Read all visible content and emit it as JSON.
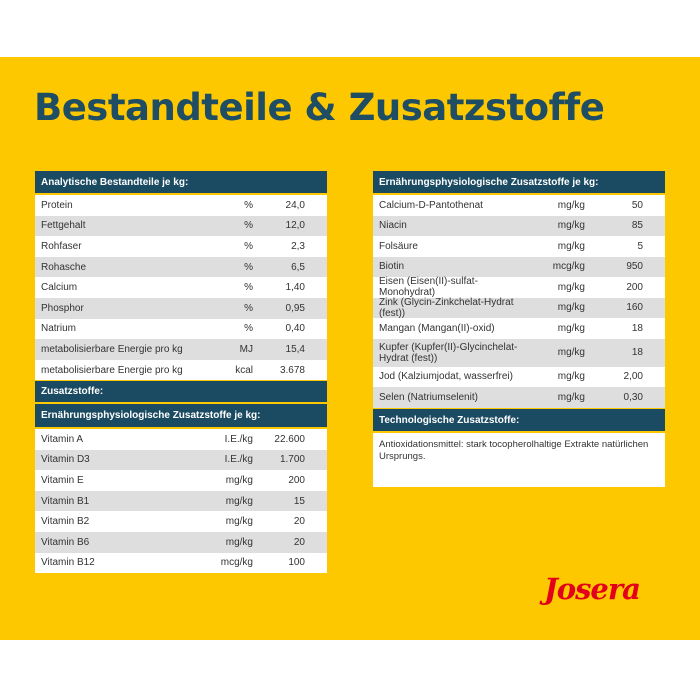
{
  "title": "Bestandteile & Zusatzstoffe",
  "colors": {
    "background": "#fdc800",
    "header": "#1b4b62",
    "title": "#1f4d63",
    "stripe": "#dedede",
    "logo": "#e2001a"
  },
  "analytical": {
    "header": "Analytische Bestandteile je kg:",
    "rows": [
      {
        "name": "Protein",
        "unit": "%",
        "value": "24,0"
      },
      {
        "name": "Fettgehalt",
        "unit": "%",
        "value": "12,0"
      },
      {
        "name": "Rohfaser",
        "unit": "%",
        "value": "2,3"
      },
      {
        "name": "Rohasche",
        "unit": "%",
        "value": "6,5"
      },
      {
        "name": "Calcium",
        "unit": "%",
        "value": "1,40"
      },
      {
        "name": "Phosphor",
        "unit": "%",
        "value": "0,95"
      },
      {
        "name": "Natrium",
        "unit": "%",
        "value": "0,40"
      },
      {
        "name": "metabolisierbare Energie pro kg",
        "unit": "MJ",
        "value": "15,4"
      },
      {
        "name": "metabolisierbare Energie pro kg",
        "unit": "kcal",
        "value": "3.678"
      }
    ]
  },
  "additives": {
    "header": "Zusatzstoffe:",
    "subheader": "Ernährungsphysiologische Zusatzstoffe je kg:",
    "rows": [
      {
        "name": "Vitamin A",
        "unit": "I.E./kg",
        "value": "22.600"
      },
      {
        "name": "Vitamin D3",
        "unit": "I.E./kg",
        "value": "1.700"
      },
      {
        "name": "Vitamin E",
        "unit": "mg/kg",
        "value": "200"
      },
      {
        "name": "Vitamin B1",
        "unit": "mg/kg",
        "value": "15"
      },
      {
        "name": "Vitamin B2",
        "unit": "mg/kg",
        "value": "20"
      },
      {
        "name": "Vitamin B6",
        "unit": "mg/kg",
        "value": "20"
      },
      {
        "name": "Vitamin B12",
        "unit": "mcg/kg",
        "value": "100"
      }
    ]
  },
  "nutritional": {
    "header": "Ernährungsphysiologische Zusatzstoffe je kg:",
    "rows": [
      {
        "name": "Calcium-D-Pantothenat",
        "unit": "mg/kg",
        "value": "50"
      },
      {
        "name": "Niacin",
        "unit": "mg/kg",
        "value": "85"
      },
      {
        "name": "Folsäure",
        "unit": "mg/kg",
        "value": "5"
      },
      {
        "name": "Biotin",
        "unit": "mcg/kg",
        "value": "950"
      },
      {
        "name": "Eisen (Eisen(II)-sulfat-Monohydrat)",
        "unit": "mg/kg",
        "value": "200"
      },
      {
        "name": "Zink (Glycin-Zinkchelat-Hydrat (fest))",
        "unit": "mg/kg",
        "value": "160"
      },
      {
        "name": "Mangan (Mangan(II)-oxid)",
        "unit": "mg/kg",
        "value": "18"
      },
      {
        "name": "Kupfer (Kupfer(II)-Glycinchelat-Hydrat (fest))",
        "unit": "mg/kg",
        "value": "18"
      },
      {
        "name": "Jod (Kalziumjodat, wasserfrei)",
        "unit": "mg/kg",
        "value": "2,00"
      },
      {
        "name": "Selen (Natriumselenit)",
        "unit": "mg/kg",
        "value": "0,30"
      }
    ]
  },
  "technological": {
    "header": "Technologische Zusatzstoffe:",
    "text": "Antioxidationsmittel: stark tocopherolhaltige Extrakte natürlichen Ursprungs."
  },
  "logo": "Josera"
}
